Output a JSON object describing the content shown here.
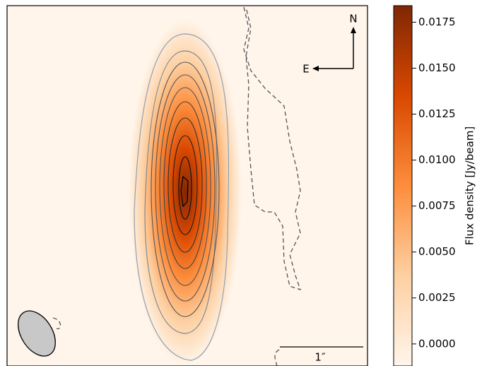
{
  "chart_data": {
    "type": "image",
    "colorbar_label": "Flux density [Jy/beam]",
    "colormap": [
      "#fff5eb",
      "#fdd0a2",
      "#fd8d3c",
      "#d94801",
      "#7f2704"
    ],
    "ylim": [
      -0.0012,
      0.0184
    ],
    "yticks": [
      {
        "value": 0,
        "label": "0.0000"
      },
      0.0025,
      {
        "value": 0.005,
        "label": "0.0050"
      },
      0.0075,
      {
        "value": 0.01,
        "label": "0.0100"
      },
      0.0125,
      {
        "value": 0.015,
        "label": "0.0150"
      },
      0.0175
    ],
    "compass": {
      "north": "N",
      "east": "E"
    },
    "scalebar_label": "1″"
  }
}
